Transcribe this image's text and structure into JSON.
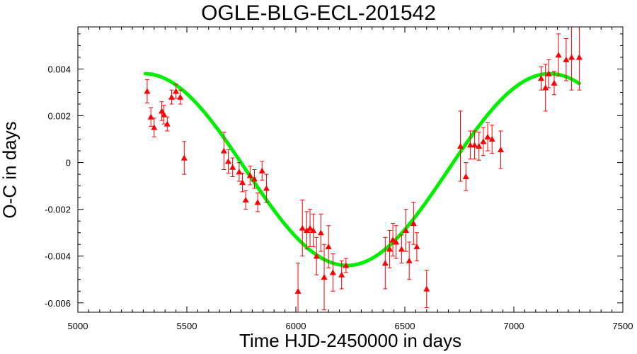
{
  "chart_data": {
    "type": "scatter",
    "title": "OGLE-BLG-ECL-201542",
    "xlabel": "Time HJD-2450000 in days",
    "ylabel": "O-C in days",
    "xlim": [
      5000,
      7500
    ],
    "ylim": [
      -0.0064,
      0.0058
    ],
    "xticks": [
      5000,
      5500,
      6000,
      6500,
      7000,
      7500
    ],
    "yticks": [
      -0.006,
      -0.004,
      -0.002,
      0,
      0.002,
      0.004
    ],
    "ytick_labels": [
      "-0.006",
      "-0.004",
      "-0.002",
      "0",
      "0.002",
      "0.004"
    ],
    "grid": false,
    "series": [
      {
        "kind": "points-with-errorbars",
        "color": "#ff0000",
        "marker": "triangle",
        "points": [
          {
            "x": 5318,
            "y": 0.00305,
            "err": 0.0005
          },
          {
            "x": 5335,
            "y": 0.00195,
            "err": 0.0004
          },
          {
            "x": 5350,
            "y": 0.0015,
            "err": 0.0004
          },
          {
            "x": 5385,
            "y": 0.0022,
            "err": 0.0004
          },
          {
            "x": 5395,
            "y": 0.00205,
            "err": 0.0004
          },
          {
            "x": 5410,
            "y": 0.00165,
            "err": 0.0003
          },
          {
            "x": 5430,
            "y": 0.0028,
            "err": 0.0003
          },
          {
            "x": 5450,
            "y": 0.00305,
            "err": 0.0003
          },
          {
            "x": 5470,
            "y": 0.0028,
            "err": 0.0003
          },
          {
            "x": 5488,
            "y": 0.0002,
            "err": 0.0007
          },
          {
            "x": 5670,
            "y": 0.0005,
            "err": 0.0008
          },
          {
            "x": 5690,
            "y": 5e-05,
            "err": 0.0005
          },
          {
            "x": 5710,
            "y": -0.0002,
            "err": 0.0004
          },
          {
            "x": 5740,
            "y": -0.0004,
            "err": 0.0004
          },
          {
            "x": 5755,
            "y": -0.00085,
            "err": 0.0004
          },
          {
            "x": 5770,
            "y": -0.0016,
            "err": 0.0004
          },
          {
            "x": 5790,
            "y": -0.00055,
            "err": 0.0004
          },
          {
            "x": 5810,
            "y": -0.0007,
            "err": 0.0004
          },
          {
            "x": 5825,
            "y": -0.0017,
            "err": 0.0004
          },
          {
            "x": 5845,
            "y": -0.00035,
            "err": 0.0004
          },
          {
            "x": 5865,
            "y": -0.0011,
            "err": 0.0006
          },
          {
            "x": 6010,
            "y": -0.0055,
            "err": 0.0012
          },
          {
            "x": 6030,
            "y": -0.0028,
            "err": 0.0012
          },
          {
            "x": 6050,
            "y": -0.0029,
            "err": 0.0008
          },
          {
            "x": 6065,
            "y": -0.0028,
            "err": 0.0008
          },
          {
            "x": 6080,
            "y": -0.0029,
            "err": 0.0007
          },
          {
            "x": 6095,
            "y": -0.004,
            "err": 0.0008
          },
          {
            "x": 6115,
            "y": -0.003,
            "err": 0.0008
          },
          {
            "x": 6130,
            "y": -0.0049,
            "err": 0.0014
          },
          {
            "x": 6150,
            "y": -0.0036,
            "err": 0.0009
          },
          {
            "x": 6170,
            "y": -0.0047,
            "err": 0.0008
          },
          {
            "x": 6210,
            "y": -0.0048,
            "err": 0.0006
          },
          {
            "x": 6230,
            "y": -0.0044,
            "err": 0.0003
          },
          {
            "x": 6410,
            "y": -0.0043,
            "err": 0.0011
          },
          {
            "x": 6430,
            "y": -0.0037,
            "err": 0.0008
          },
          {
            "x": 6445,
            "y": -0.0033,
            "err": 0.0007
          },
          {
            "x": 6460,
            "y": -0.0034,
            "err": 0.0007
          },
          {
            "x": 6485,
            "y": -0.0037,
            "err": 0.0006
          },
          {
            "x": 6505,
            "y": -0.0029,
            "err": 0.0009
          },
          {
            "x": 6520,
            "y": -0.0042,
            "err": 0.0008
          },
          {
            "x": 6540,
            "y": -0.0026,
            "err": 0.0009
          },
          {
            "x": 6555,
            "y": -0.0036,
            "err": 0.0006
          },
          {
            "x": 6600,
            "y": -0.0054,
            "err": 0.0008
          },
          {
            "x": 6755,
            "y": 0.0007,
            "err": 0.0015
          },
          {
            "x": 6780,
            "y": -0.0006,
            "err": 0.0006
          },
          {
            "x": 6800,
            "y": 0.00075,
            "err": 0.0006
          },
          {
            "x": 6820,
            "y": 0.00075,
            "err": 0.0006
          },
          {
            "x": 6840,
            "y": 0.0007,
            "err": 0.0006
          },
          {
            "x": 6860,
            "y": 0.0009,
            "err": 0.0006
          },
          {
            "x": 6880,
            "y": 0.0011,
            "err": 0.0006
          },
          {
            "x": 6900,
            "y": 0.001,
            "err": 0.0006
          },
          {
            "x": 6940,
            "y": 0.00055,
            "err": 0.0008
          },
          {
            "x": 7125,
            "y": 0.0036,
            "err": 0.0005
          },
          {
            "x": 7145,
            "y": 0.0032,
            "err": 0.001
          },
          {
            "x": 7160,
            "y": 0.0038,
            "err": 0.0006
          },
          {
            "x": 7185,
            "y": 0.0034,
            "err": 0.0005
          },
          {
            "x": 7205,
            "y": 0.0046,
            "err": 0.0009
          },
          {
            "x": 7240,
            "y": 0.0044,
            "err": 0.0009
          },
          {
            "x": 7265,
            "y": 0.0045,
            "err": 0.0014
          },
          {
            "x": 7300,
            "y": 0.0045,
            "err": 0.0014
          }
        ]
      },
      {
        "kind": "fit-curve",
        "color": "#00ee00",
        "model": "sine",
        "params": {
          "offset": -0.0003,
          "amplitude": 0.0041,
          "period": 1860,
          "t_max": 7165
        },
        "x_range": [
          5310,
          7300
        ]
      }
    ]
  }
}
